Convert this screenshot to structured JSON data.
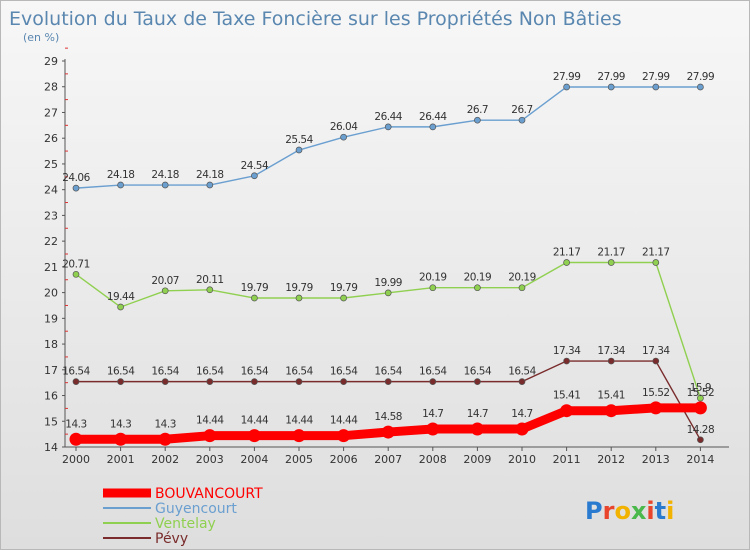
{
  "chart_data": {
    "type": "line",
    "title": "Evolution du Taux de Taxe Foncière sur les Propriétés Non Bâties",
    "unit_label": "(en %)",
    "categories": [
      "2000",
      "2001",
      "2002",
      "2003",
      "2004",
      "2005",
      "2006",
      "2007",
      "2008",
      "2009",
      "2010",
      "2011",
      "2012",
      "2013",
      "2014"
    ],
    "ylim": [
      14,
      29
    ],
    "yticks": [
      14,
      15,
      16,
      17,
      18,
      19,
      20,
      21,
      22,
      23,
      24,
      25,
      26,
      27,
      28,
      29
    ],
    "grid": false,
    "legend_position": "bottom-left",
    "series": [
      {
        "name": "Guyencourt",
        "color": "#6a9fd0",
        "values": [
          24.06,
          24.18,
          24.18,
          24.18,
          24.54,
          25.54,
          26.04,
          26.44,
          26.44,
          26.7,
          26.7,
          27.99,
          27.99,
          27.99,
          27.99
        ],
        "labels": [
          "24.06",
          "24.18",
          "24.18",
          "24.18",
          "24.54",
          "25.54",
          "26.04",
          "26.44",
          "26.44",
          "26.7",
          "26.7",
          "27.99",
          "27.99",
          "27.99",
          "27.99"
        ]
      },
      {
        "name": "Ventelay",
        "color": "#90d050",
        "values": [
          20.71,
          19.44,
          20.07,
          20.11,
          19.79,
          19.79,
          19.79,
          19.99,
          20.19,
          20.19,
          20.19,
          21.17,
          21.17,
          21.17,
          15.9
        ],
        "labels": [
          "20.71",
          "19.44",
          "20.07",
          "20.11",
          "19.79",
          "19.79",
          "19.79",
          "19.99",
          "20.19",
          "20.19",
          "20.19",
          "21.17",
          "21.17",
          "21.17",
          "15.9"
        ]
      },
      {
        "name": "Pévy",
        "color": "#7a2c2c",
        "values": [
          16.54,
          16.54,
          16.54,
          16.54,
          16.54,
          16.54,
          16.54,
          16.54,
          16.54,
          16.54,
          16.54,
          17.34,
          17.34,
          17.34,
          14.28
        ],
        "labels": [
          "16.54",
          "16.54",
          "16.54",
          "16.54",
          "16.54",
          "16.54",
          "16.54",
          "16.54",
          "16.54",
          "16.54",
          "16.54",
          "17.34",
          "17.34",
          "17.34",
          "14.28"
        ]
      },
      {
        "name": "BOUVANCOURT",
        "color": "#ff0000",
        "values": [
          14.3,
          14.3,
          14.3,
          14.44,
          14.44,
          14.44,
          14.44,
          14.58,
          14.7,
          14.7,
          14.7,
          15.41,
          15.41,
          15.52,
          15.52
        ],
        "labels": [
          "14.3",
          "14.3",
          "14.3",
          "14.44",
          "14.44",
          "14.44",
          "14.44",
          "14.58",
          "14.7",
          "14.7",
          "14.7",
          "15.41",
          "15.41",
          "15.52",
          "15.52"
        ],
        "thick": true
      }
    ],
    "legend_order": [
      "BOUVANCOURT",
      "Guyencourt",
      "Ventelay",
      "Pévy"
    ]
  },
  "branding": {
    "logo_text": "Proxiti",
    "logo_colors": [
      "#2a7bd0",
      "#e8452c",
      "#f2b200",
      "#4ab84a",
      "#e8452c",
      "#2a7bd0",
      "#f2b200"
    ]
  }
}
